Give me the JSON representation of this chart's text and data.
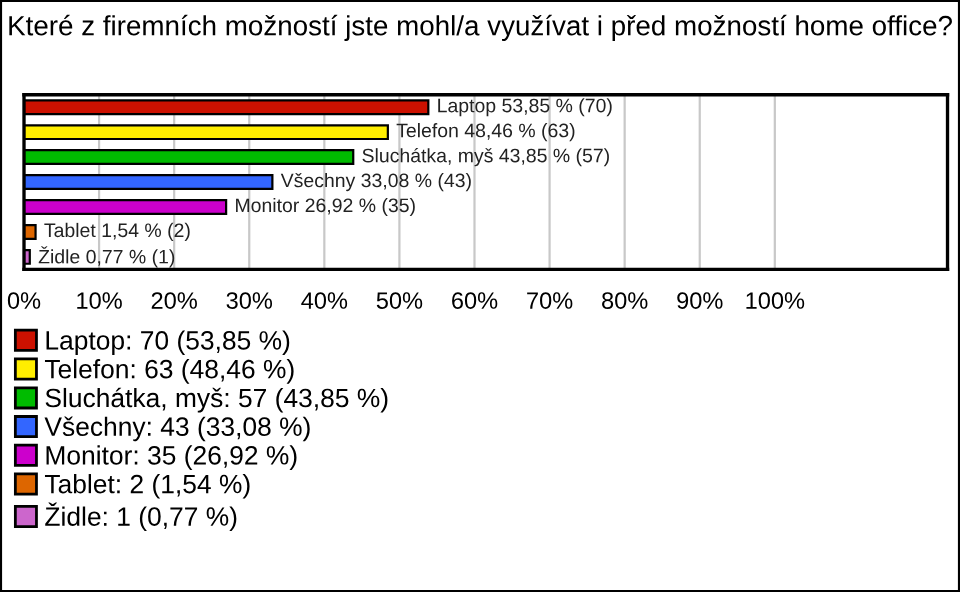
{
  "chart_data": {
    "type": "bar",
    "orientation": "horizontal",
    "title": "Které z firemních možností jste mohl/a využívat i před možností home office?",
    "categories": [
      null,
      null,
      null,
      null,
      null,
      null,
      null
    ],
    "series": [
      {
        "name": "Laptop: 70 (53,85 %)",
        "color": "#cc1100",
        "values": [
          53.85,
          null,
          null,
          null,
          null,
          null,
          null
        ],
        "value_labels": [
          "Laptop 53,85 % (70)",
          null,
          null,
          null,
          null,
          null,
          null
        ]
      },
      {
        "name": "Telefon: 63 (48,46 %)",
        "color": "#ffee00",
        "values": [
          null,
          48.46,
          null,
          null,
          null,
          null,
          null
        ],
        "value_labels": [
          null,
          "Telefon 48,46 % (63)",
          null,
          null,
          null,
          null,
          null
        ]
      },
      {
        "name": "Sluchátka, myš: 57 (43,85 %)",
        "color": "#00bb00",
        "values": [
          null,
          null,
          43.85,
          null,
          null,
          null,
          null
        ],
        "value_labels": [
          null,
          null,
          "Sluchátka, myš 43,85 % (57)",
          null,
          null,
          null,
          null
        ]
      },
      {
        "name": "Všechny: 43 (33,08 %)",
        "color": "#3366ff",
        "values": [
          null,
          null,
          null,
          33.08,
          null,
          null,
          null
        ],
        "value_labels": [
          null,
          null,
          null,
          "Všechny 33,08 % (43)",
          null,
          null,
          null
        ]
      },
      {
        "name": "Monitor: 35 (26,92 %)",
        "color": "#cc00cc",
        "values": [
          null,
          null,
          null,
          null,
          26.92,
          null,
          null
        ],
        "value_labels": [
          null,
          null,
          null,
          null,
          "Monitor 26,92 % (35)",
          null,
          null
        ]
      },
      {
        "name": "Tablet: 2 (1,54 %)",
        "color": "#dd6600",
        "values": [
          null,
          null,
          null,
          null,
          null,
          1.54,
          null
        ],
        "value_labels": [
          null,
          null,
          null,
          null,
          null,
          "Tablet 1,54 % (2)",
          null
        ]
      },
      {
        "name": "Židle: 1 (0,77 %)",
        "color": "#cc66cc",
        "values": [
          null,
          null,
          null,
          null,
          null,
          null,
          0.77
        ],
        "value_labels": [
          null,
          null,
          null,
          null,
          null,
          null,
          "Židle 0,77 % (1)"
        ]
      }
    ],
    "xlim": [
      0,
      123
    ],
    "xticks": [
      {
        "value": 0,
        "label": "0%"
      },
      {
        "value": 10,
        "label": "10%"
      },
      {
        "value": 20,
        "label": "20%"
      },
      {
        "value": 30,
        "label": "30%"
      },
      {
        "value": 40,
        "label": "40%"
      },
      {
        "value": 50,
        "label": "50%"
      },
      {
        "value": 60,
        "label": "60%"
      },
      {
        "value": 70,
        "label": "70%"
      },
      {
        "value": 80,
        "label": "80%"
      },
      {
        "value": 90,
        "label": "90%"
      },
      {
        "value": 100,
        "label": "100%"
      }
    ],
    "grid": "x",
    "legend": "bottom"
  }
}
